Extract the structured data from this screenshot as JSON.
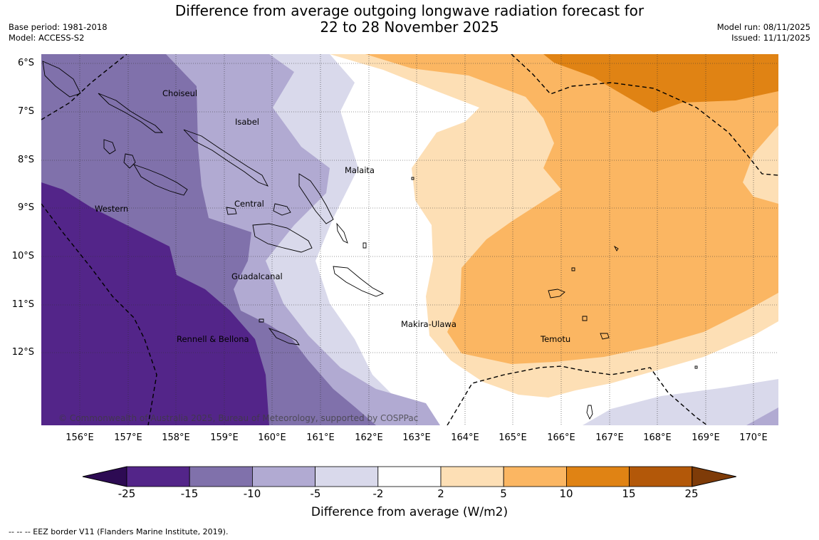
{
  "title_line1": "Difference from average outgoing longwave radiation forecast for",
  "title_line2": "22 to 28 November 2025",
  "base_period": "Base period: 1981-2018",
  "model": "Model: ACCESS-S2",
  "model_run": "Model run: 08/11/2025",
  "issued": "Issued: 11/11/2025",
  "lat_labels": [
    "6°S",
    "7°S",
    "8°S",
    "9°S",
    "10°S",
    "11°S",
    "12°S"
  ],
  "lon_labels": [
    "156°E",
    "157°E",
    "158°E",
    "159°E",
    "160°E",
    "161°E",
    "162°E",
    "163°E",
    "164°E",
    "165°E",
    "166°E",
    "167°E",
    "168°E",
    "169°E",
    "170°E"
  ],
  "regions": {
    "choiseul": "Choiseul",
    "isabel": "Isabel",
    "malaita": "Malaita",
    "central": "Central",
    "western": "Western",
    "guadalcanal": "Guadalcanal",
    "makira": "Makira-Ulawa",
    "rennell": "Rennell & Bellona",
    "temotu": "Temotu"
  },
  "copyright": "© Commonwealth of Australia 2025, Bureau of Meteorology, supported by COSPPac",
  "colorbar": {
    "ticks": [
      "-25",
      "-15",
      "-10",
      "-5",
      "-2",
      "2",
      "5",
      "10",
      "15",
      "25"
    ],
    "colors": [
      "#2d0b53",
      "#532589",
      "#8071ab",
      "#b1aad2",
      "#d9d9eb",
      "#ffffff",
      "#fddfb5",
      "#fbb662",
      "#e08314",
      "#b35809",
      "#7e3b08"
    ],
    "label": "Difference from average (W/m2)"
  },
  "footnote": "--  --  -- EEZ border V11 (Flanders Marine Institute, 2019)."
}
